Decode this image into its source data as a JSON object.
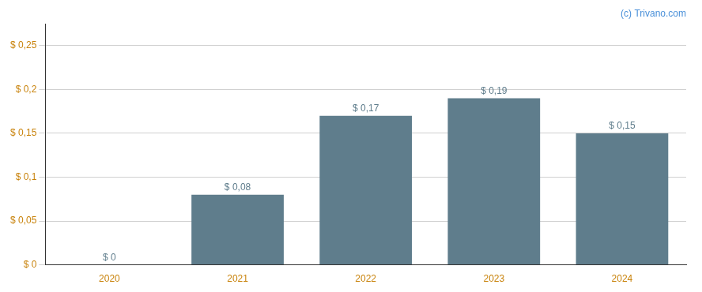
{
  "chart_data": {
    "type": "bar",
    "categories": [
      "2020",
      "2021",
      "2022",
      "2023",
      "2024"
    ],
    "values": [
      0.0,
      0.08,
      0.17,
      0.19,
      0.15
    ],
    "value_labels": [
      "$ 0",
      "$ 0,08",
      "$ 0,17",
      "$ 0,19",
      "$ 0,15"
    ],
    "data_labels": true,
    "color": "#5f7d8c",
    "ylim": [
      0,
      0.275
    ],
    "yticks": [
      {
        "value": 0.0,
        "label": "$ 0"
      },
      {
        "value": 0.05,
        "label": "$ 0,05"
      },
      {
        "value": 0.1,
        "label": "$ 0,1"
      },
      {
        "value": 0.15,
        "label": "$ 0,15"
      },
      {
        "value": 0.2,
        "label": "$ 0,2"
      },
      {
        "value": 0.25,
        "label": "$ 0,25"
      }
    ],
    "grid": true,
    "annotations": [
      "(c) Trivano.com"
    ]
  }
}
